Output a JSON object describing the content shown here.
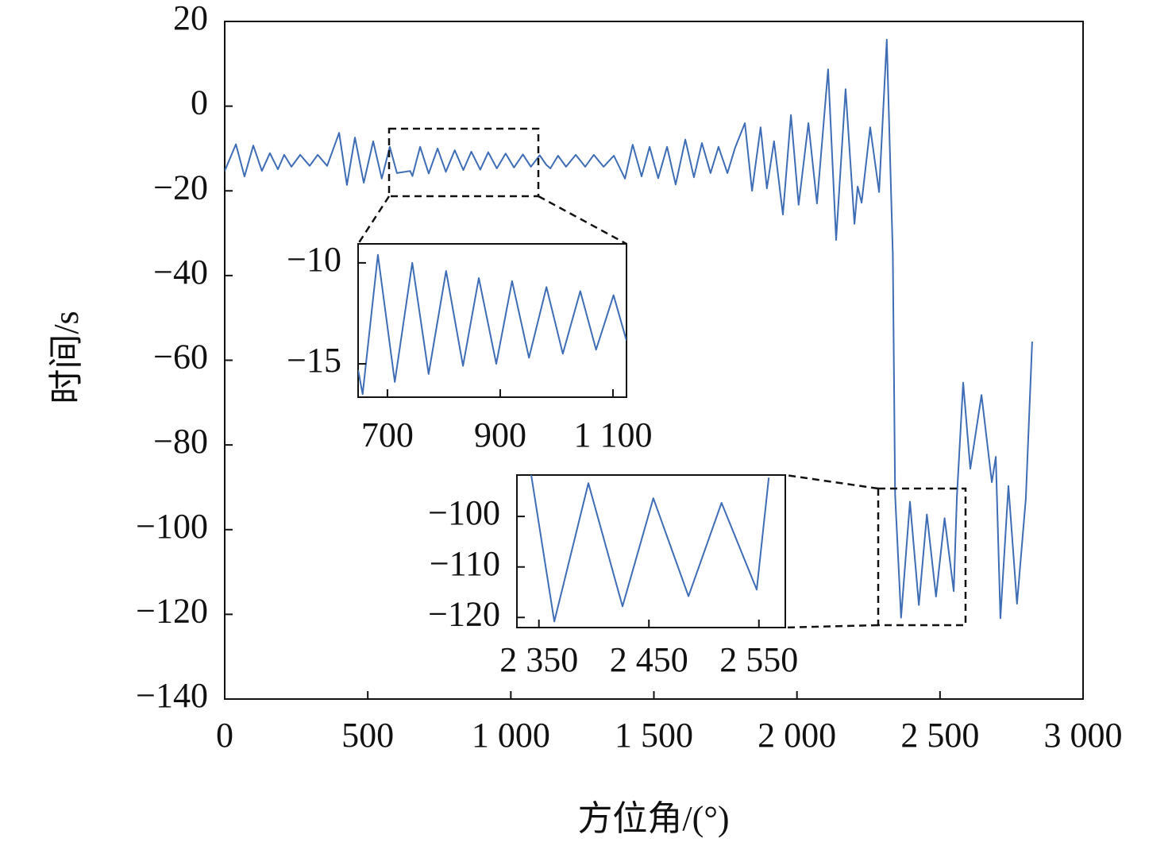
{
  "chart_data": [
    {
      "type": "line",
      "xlabel": "方位角/(°)",
      "ylabel": "时间/s",
      "xlim": [
        0,
        3000
      ],
      "ylim": [
        -140,
        20
      ],
      "xticks": [
        0,
        500,
        {
          "value": 1000,
          "label": "1 000"
        },
        {
          "value": 1500,
          "label": "1 500"
        },
        {
          "value": 2000,
          "label": "2 000"
        },
        {
          "value": 2500,
          "label": "2 500"
        },
        {
          "value": 3000,
          "label": "3 000"
        }
      ],
      "yticks": [
        20,
        0,
        {
          "value": -20,
          "label": "−20"
        },
        {
          "value": -40,
          "label": "−40"
        },
        {
          "value": -60,
          "label": "−60"
        },
        {
          "value": -80,
          "label": "−80"
        },
        {
          "value": -100,
          "label": "−100"
        },
        {
          "value": -120,
          "label": "−120"
        },
        {
          "value": -140,
          "label": "−140"
        }
      ],
      "x": [
        0,
        39,
        69,
        100,
        130,
        158,
        186,
        208,
        233,
        264,
        297,
        325,
        358,
        400,
        427,
        455,
        486,
        519,
        549,
        577,
        602,
        648,
        656,
        683,
        713,
        744,
        773,
        804,
        834,
        862,
        893,
        921,
        951,
        982,
        1011,
        1042,
        1070,
        1101,
        1124,
        1138,
        1165,
        1193,
        1227,
        1260,
        1290,
        1324,
        1360,
        1399,
        1426,
        1457,
        1485,
        1515,
        1546,
        1576,
        1610,
        1640,
        1668,
        1698,
        1726,
        1757,
        1784,
        1818,
        1843,
        1873,
        1895,
        1920,
        1951,
        1979,
        2006,
        2040,
        2070,
        2109,
        2137,
        2170,
        2201,
        2212,
        2226,
        2256,
        2287,
        2314,
        2335,
        2343,
        2364,
        2395,
        2426,
        2454,
        2486,
        2516,
        2548,
        2559,
        2581,
        2606,
        2645,
        2681,
        2695,
        2711,
        2739,
        2769,
        2800,
        2822
      ],
      "series": [
        {
          "color": "#3e6db5",
          "values": [
            -15.3,
            -9,
            -16.6,
            -9.3,
            -15.3,
            -11.1,
            -14.9,
            -11.5,
            -14.3,
            -11.5,
            -14.1,
            -11.5,
            -14.1,
            -6.3,
            -18.6,
            -7.4,
            -18.1,
            -8.3,
            -17.1,
            -9.6,
            -15.8,
            -15.3,
            -16.5,
            -9.6,
            -15.9,
            -10,
            -15.5,
            -10.4,
            -15.1,
            -10.75,
            -15,
            -10.9,
            -14.7,
            -11.2,
            -14.5,
            -11.4,
            -14.3,
            -11.6,
            -13.85,
            -14.7,
            -11.7,
            -14.3,
            -11.5,
            -14.3,
            -11.5,
            -14.3,
            -11.7,
            -17.1,
            -9.1,
            -16.6,
            -9.6,
            -17,
            -9.6,
            -18.5,
            -7.9,
            -16.8,
            -8.7,
            -15.8,
            -9.6,
            -15.8,
            -9.8,
            -4,
            -20,
            -5,
            -19.4,
            -8.3,
            -25.6,
            -2.1,
            -23.3,
            -4,
            -23,
            8.7,
            -31.6,
            4,
            -27.8,
            -19,
            -22.8,
            -5,
            -20.3,
            15.7,
            -35,
            -91.8,
            -120.8,
            -93.4,
            -117.8,
            -96.4,
            -115.8,
            -97.3,
            -114.5,
            -92.3,
            -65.3,
            -85.6,
            -68.2,
            -88.8,
            -82.8,
            -120.9,
            -89.7,
            -117.5,
            -92.7,
            -55.6
          ]
        }
      ]
    },
    {
      "type": "line",
      "xlim": [
        648,
        1124
      ],
      "ylim": [
        -16.65,
        -9.06
      ],
      "xticks": [
        700,
        900,
        {
          "value": 1100,
          "label": "1 100"
        }
      ],
      "yticks": [
        {
          "value": -10,
          "label": "−10"
        },
        {
          "value": -15,
          "label": "−15"
        }
      ],
      "x": [
        648,
        656,
        683,
        713,
        744,
        773,
        804,
        834,
        862,
        893,
        921,
        951,
        982,
        1011,
        1042,
        1070,
        1101,
        1124
      ],
      "series": [
        {
          "color": "#3e6db5",
          "values": [
            -15.3,
            -16.5,
            -9.6,
            -15.9,
            -10,
            -15.5,
            -10.4,
            -15.1,
            -10.75,
            -15,
            -10.9,
            -14.7,
            -11.2,
            -14.5,
            -11.4,
            -14.3,
            -11.6,
            -13.85
          ]
        }
      ]
    },
    {
      "type": "line",
      "xlim": [
        2330,
        2574
      ],
      "ylim": [
        -122,
        -91.8
      ],
      "xticks": [
        {
          "value": 2350,
          "label": "2 350"
        },
        {
          "value": 2450,
          "label": "2 450"
        },
        {
          "value": 2550,
          "label": "2 550"
        }
      ],
      "yticks": [
        {
          "value": -100,
          "label": "−100"
        },
        {
          "value": -110,
          "label": "−110"
        },
        {
          "value": -120,
          "label": "−120"
        }
      ],
      "x": [
        2343,
        2364,
        2395,
        2426,
        2454,
        2486,
        2516,
        2548,
        2559
      ],
      "series": [
        {
          "color": "#3e6db5",
          "values": [
            -91.8,
            -120.8,
            -93.4,
            -117.8,
            -96.4,
            -115.8,
            -97.3,
            -114.5,
            -92.3
          ]
        }
      ]
    }
  ]
}
